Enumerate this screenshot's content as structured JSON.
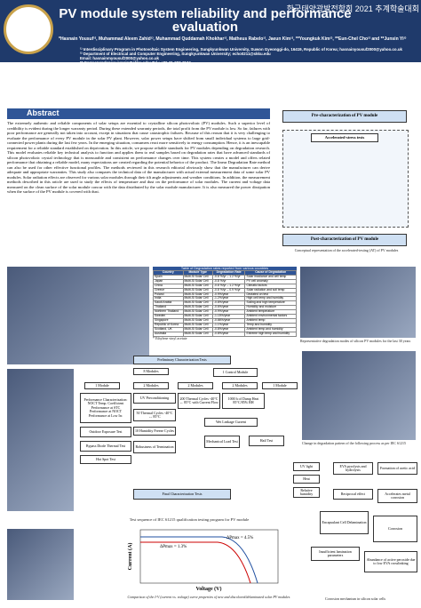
{
  "header": {
    "conference": "한국태양광발전학회 2021 추계학술대회",
    "title": "PV module system reliability and performance evaluation",
    "authors": "*Hasnain Yousuf¹⁾, Muhammad Aleem Zahid¹⁾, Muhammad Quddamah Khokhar¹⁾, Matheus Rabelo¹⁾, Jaeun Kim¹⁾, **Youngkuk Kim²⁾, **Eun-Chel Cho²⁾ and **Junsin Yi²⁾",
    "affiliations": [
      "¹⁾ Interdisciplinary Program in Photovoltaic System Engineering, Sungkyunkwan University, Suwon Gyeonggi-do, 16419, Republic of Korea; hasnainyousuf2000@yahoo.co.uk",
      "²⁾ Department of Electrical and Computer Engineering, Sungkyunkwan University; echo0211@skku.edu",
      "Email: hasnainmyousuf2000@yahoo.co.uk",
      "** Correspondence: junsin@skku.edu; Tel.: +82-31-290-7174"
    ]
  },
  "abstract": {
    "heading": "Abstract",
    "text": "The extremely authentic and reliable components of solar setups are essential to crystalline silicon photovoltaic (PV) modules. Such a superior level of credibility is evident during the longer warranty period. During these extended warranty periods, the total profit from the PV module is low. So far, failures with poor performance are generally not taken into account, except in situations that cause catastrophic failures. Because of this reason that it is very challenging to evaluate the performance of every PV module in the solar PV plant. However, solar power setups have shifted from small individual systems to large grid-connected power plants during the last few years. In the emerging situation, consumers react more sensitively to energy consumption. Hence, it is an inescapable requirement for a reliable standard established on deprivation. In this article, we propose reliable standards for PV modules depending on degradation research. This model evaluates reliable key technical analysis to function and applies them to real samples based on degradation rates that have advanced standards of silicon photovoltaic crystal technology that is measurable and consistent on performance changes over time. This system creates a model and offers related performance that obtaining a reliable model, many expectations are created regarding the potential behavior of the product. The linear Degradation Rate method can also be used for other effective functional profiles. The methods reviewed in this research editorial obviously show that the manufacturer can derive adequate and appropriate warranties. This study also compares the technical data of the manufacturer with actual external measurement data of some solar PV modules. Solar radiation effects are observed for various solar modules through their tilt angle adjustments and weather conditions. In addition, the measurement methods described in this article are used to study the effects of temperature and dust on the performance of solar modules. The current and voltage data measured on the clean surface of the solar module concur with the data distributed by the solar module manufacturer. It is also measured the power dissipation when the surface of the PV module is covered with dust."
  },
  "concept": {
    "pre": "Pre-characterization of PV module",
    "tests": "Accelerated-stress tests",
    "post": "Post-characterization of PV module",
    "caption": "Conceptual representation of the accelerated-testing (AT) of PV modules"
  },
  "table": {
    "title": "Table of Degradation rates reported from various countries",
    "columns": [
      "Country",
      "Module Type",
      "Degradation Rate",
      "Cause of Degradation"
    ],
    "rows": [
      [
        "Spain",
        "Multi-Si Solar Cell",
        "-0.8 %/yr – 1.2 %/yr",
        "Solar irradiance and cell temp"
      ],
      [
        "Japan",
        "Multi-Si Solar Cell",
        "-0.8 %/yr",
        "PV cell anomaly"
      ],
      [
        "China",
        "Multi-Si Solar Cell",
        "-0.8 %/yr – 1.2 %/yr",
        "Climatic factors"
      ],
      [
        "Greece",
        "Multi-Si Solar Cell",
        "-0.8 %/yr – 0.9 %/yr",
        "Solar radiation and soil temp"
      ],
      [
        "Poland",
        "Multi-Si Solar Cell",
        "-0.9%/year",
        "Deviated on test"
      ],
      [
        "India",
        "Multi-Si Solar Cell",
        "-1.2%/year",
        "High cell temp and humidity"
      ],
      [
        "Saudi Arabia",
        "Multi-Si Solar Cell",
        "-0.8%/year",
        "Soiling and high temperature"
      ],
      [
        "Thailand",
        "Multi-Si Solar Cell",
        "-0.6%/year",
        "Humidity and moisture"
      ],
      [
        "Northern Thailand",
        "Multi-Si Solar Cell",
        "-0.9%/year",
        "Ambient temperature"
      ],
      [
        "Sweden",
        "Multi-Si Solar Cell",
        "-1.15%/year",
        "Ambient environmental factors"
      ],
      [
        "Singapore",
        "Multi-Si Solar Cell",
        "-0.86%/year",
        "Ambient temp"
      ],
      [
        "Republic of Korea",
        "Multi-Si Solar Cell",
        "-1.1%/year",
        "Temp and humidity"
      ],
      [
        "Scotland, UK",
        "Multi-Si Solar Cell",
        "-0.8%/year",
        "Ambient temp and humidity"
      ],
      [
        "Australia",
        "Multi-Si Solar Cell",
        "-0.8%/year",
        "Extreme high temp and humidity"
      ]
    ],
    "note": "* Ethylene vinyl acetate"
  },
  "modes_caption": "Representative degradation modes of silicon PV modules for the last 30 years",
  "flow": {
    "caption": "Test sequence of IEC 61215 qualification testing program for PV module",
    "nodes": [
      "Preliminary Characterization Tests",
      "8 Modules",
      "1 Control Module",
      "1 Module",
      "2 Modules",
      "2 Modules",
      "2 Modules",
      "1 Module",
      "Performance Characterization: NOCT Temp. Coefficient Performance at STC Performance at NOCT Performance at Low Irr.",
      "UV Preconditioning",
      "200 Thermal Cycles -40°C ↔ 85°C with Current Flow",
      "1000 h of Damp Heat 85°C/85% RH",
      "Outdoor Exposure Test",
      "50 Thermal Cycles -40°C ↔ 85°C",
      "Wet Leakage Current",
      "Bypass Diode Thermal Test",
      "10 Humidity Freeze Cycles",
      "Hot Spot Test",
      "Robustness of Termination",
      "Mechanical Load Test",
      "Hail Test",
      "Final Characterization Tests"
    ]
  },
  "right_caption": "Change in degradation pattern of the following process as per IEC 61215",
  "iv": {
    "xlabel": "Voltage (V)",
    "ylabel": "Current (A)",
    "note1": "ΔPmax = 1.3%",
    "note2": "ΔPmax = 4.5%",
    "caption": "Comparison of the I-V (current vs. voltage) curve properties of new and discolored/delaminated solar PV modules"
  },
  "cause": {
    "nodes": [
      "UV light",
      "Heat",
      "Relative humidity",
      "EVA pyrolysis and hydrolysis",
      "Formation of acetic acid",
      "Reciprocal effect",
      "Accelerates metal corrosion",
      "Encapsulant Cell Delamination",
      "Corrosion",
      "Insufficient lamination parameters",
      "Abundance of active peroxide due to low EVA crosslinking"
    ],
    "caption": "Corrosion mechanism in silicon solar cells"
  }
}
